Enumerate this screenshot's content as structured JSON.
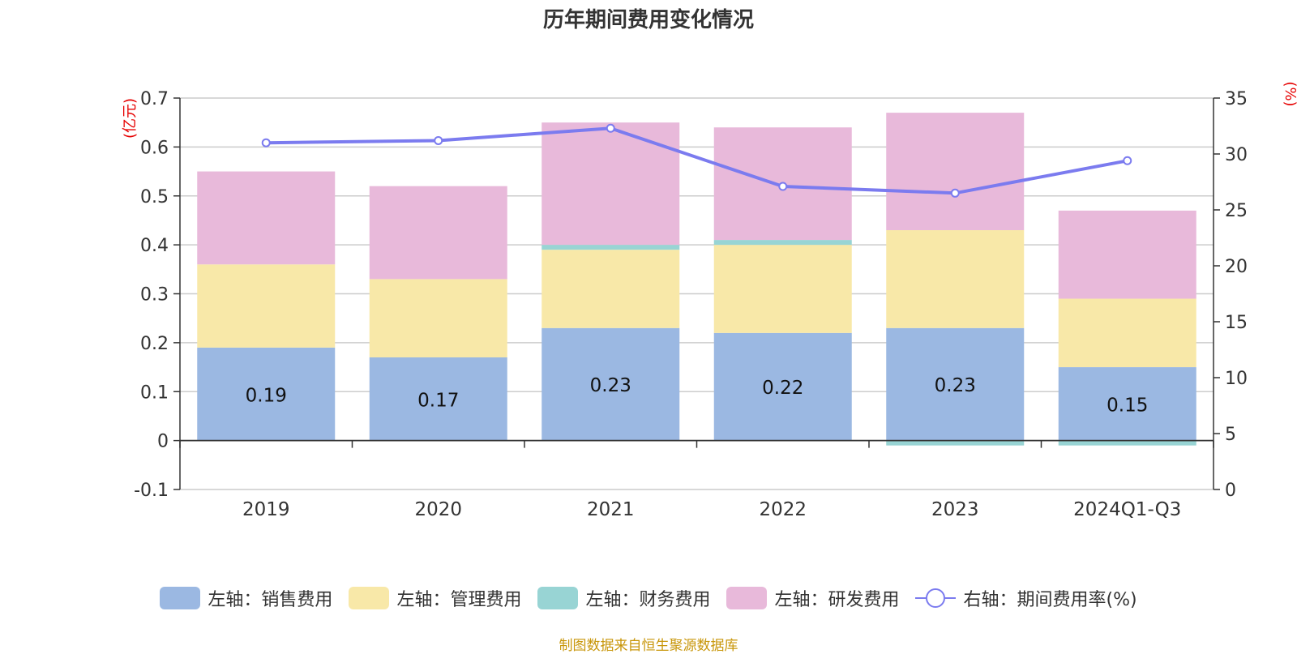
{
  "title": "历年期间费用变化情况",
  "source": "制图数据来自恒生聚源数据库",
  "chart_data": {
    "type": "bar",
    "stacked": true,
    "categories": [
      "2019",
      "2020",
      "2021",
      "2022",
      "2023",
      "2024Q1-Q3"
    ],
    "y_left": {
      "label": "(亿元)",
      "min": -0.1,
      "max": 0.7,
      "ticks": [
        -0.1,
        0,
        0.1,
        0.2,
        0.3,
        0.4,
        0.5,
        0.6,
        0.7
      ]
    },
    "y_right": {
      "label": "(%)",
      "min": 0,
      "max": 35,
      "ticks": [
        0,
        5,
        10,
        15,
        20,
        25,
        30,
        35
      ]
    },
    "series": [
      {
        "name": "左轴：销售费用",
        "color": "#9bb8e2",
        "axis": "left",
        "values": [
          0.19,
          0.17,
          0.23,
          0.22,
          0.23,
          0.15
        ],
        "show_labels": true
      },
      {
        "name": "左轴：管理费用",
        "color": "#f8e8a8",
        "axis": "left",
        "values": [
          0.17,
          0.16,
          0.16,
          0.18,
          0.2,
          0.14
        ]
      },
      {
        "name": "左轴：财务费用",
        "color": "#98d4d4",
        "axis": "left",
        "values": [
          0.0,
          0.0,
          0.01,
          0.01,
          -0.01,
          -0.01
        ]
      },
      {
        "name": "左轴：研发费用",
        "color": "#e8b9da",
        "axis": "left",
        "values": [
          0.19,
          0.19,
          0.25,
          0.23,
          0.24,
          0.18
        ]
      },
      {
        "name": "右轴：期间费用率(%)",
        "type": "line",
        "color": "#7b7bef",
        "axis": "right",
        "values": [
          31.0,
          31.2,
          32.3,
          27.1,
          26.5,
          29.4
        ]
      }
    ],
    "grid": true,
    "legend_position": "bottom"
  }
}
